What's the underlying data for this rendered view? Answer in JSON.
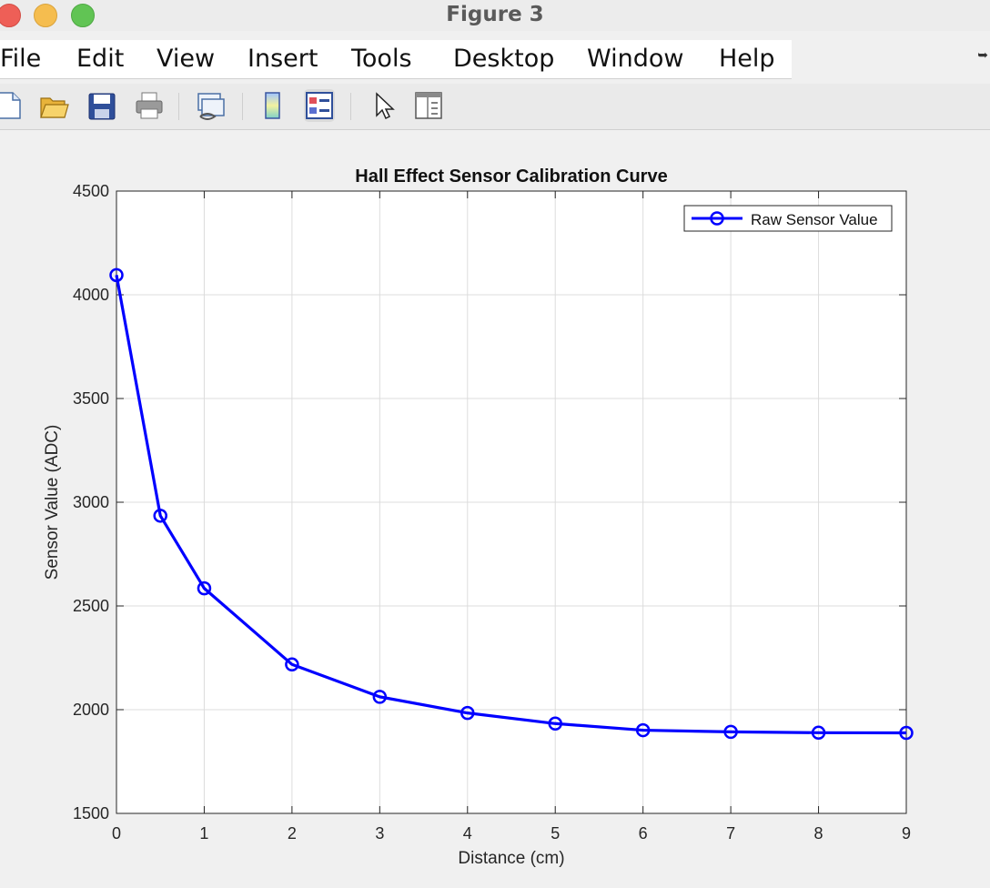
{
  "window": {
    "title": "Figure 3"
  },
  "menu": [
    "File",
    "Edit",
    "View",
    "Insert",
    "Tools",
    "Desktop",
    "Window",
    "Help"
  ],
  "toolbar": {
    "buttons": [
      {
        "name": "new-figure-icon"
      },
      {
        "name": "open-file-icon"
      },
      {
        "name": "save-icon"
      },
      {
        "name": "print-icon"
      },
      {
        "name": "link-plot-icon"
      },
      {
        "name": "colorbar-icon"
      },
      {
        "name": "legend-icon",
        "active": true
      },
      {
        "name": "edit-plot-cursor-icon"
      },
      {
        "name": "property-inspector-icon"
      }
    ]
  },
  "chart_data": {
    "type": "line",
    "title": "Hall Effect Sensor Calibration Curve",
    "xlabel": "Distance (cm)",
    "ylabel": "Sensor Value (ADC)",
    "xlim": [
      0,
      9
    ],
    "ylim": [
      1500,
      4500
    ],
    "xticks": [
      0,
      1,
      2,
      3,
      4,
      5,
      6,
      7,
      8,
      9
    ],
    "yticks": [
      1500,
      2000,
      2500,
      3000,
      3500,
      4000,
      4500
    ],
    "grid": true,
    "legend_position": "top-right",
    "series": [
      {
        "name": "Raw Sensor Value",
        "color": "#0000ff",
        "marker": "circle",
        "x": [
          0,
          0.5,
          1,
          2,
          3,
          4,
          5,
          6,
          7,
          8,
          9
        ],
        "y": [
          4095,
          2935,
          2585,
          2218,
          2062,
          1984,
          1933,
          1901,
          1893,
          1889,
          1888
        ]
      }
    ]
  }
}
